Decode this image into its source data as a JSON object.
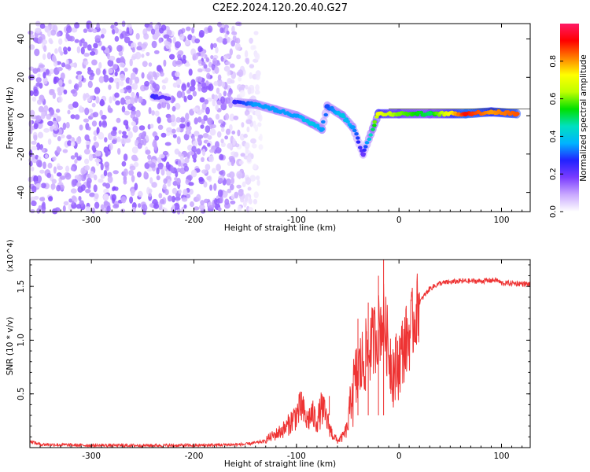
{
  "title": "C2E2.2024.120.20.40.G27",
  "chart_data": [
    {
      "type": "heatmap",
      "xlabel": "Height of straight line (km)",
      "ylabel": "Frequency (Hz)",
      "xlim": [
        -360,
        128
      ],
      "ylim": [
        -50,
        48
      ],
      "xticks": [
        -300,
        -200,
        -100,
        0,
        100
      ],
      "yticks": [
        -40,
        -20,
        0,
        20,
        40
      ],
      "colorbar": {
        "label": "Normalized spectral amplitude",
        "range": [
          0,
          1
        ],
        "ticks": [
          0.0,
          0.2,
          0.4,
          0.6,
          0.8
        ],
        "tick_labels": [
          "0.0",
          "0.2",
          "0.4",
          "0.6",
          "0.8"
        ],
        "colormap": [
          "#ffffff",
          "#c9a8ff",
          "#7a3cff",
          "#2222ff",
          "#00b4ff",
          "#00e0c0",
          "#00e000",
          "#bfff00",
          "#ffff00",
          "#ff8000",
          "#ff0000",
          "#ff1a66"
        ]
      },
      "features": {
        "noise_region_x": [
          -360,
          -130
        ],
        "signal_trace": [
          {
            "x": -240,
            "y": 10,
            "amp": 0.25
          },
          {
            "x": -225,
            "y": 9,
            "amp": 0.2
          },
          {
            "x": -160,
            "y": 7,
            "amp": 0.25
          },
          {
            "x": -140,
            "y": 6,
            "amp": 0.35
          },
          {
            "x": -120,
            "y": 3,
            "amp": 0.35
          },
          {
            "x": -100,
            "y": 0,
            "amp": 0.35
          },
          {
            "x": -85,
            "y": -4,
            "amp": 0.4
          },
          {
            "x": -75,
            "y": -7,
            "amp": 0.35
          },
          {
            "x": -70,
            "y": 5,
            "amp": 0.3
          },
          {
            "x": -55,
            "y": 0,
            "amp": 0.4
          },
          {
            "x": -45,
            "y": -6,
            "amp": 0.35
          },
          {
            "x": -35,
            "y": -20,
            "amp": 0.2
          },
          {
            "x": -20,
            "y": 1,
            "amp": 0.7
          },
          {
            "x": 0,
            "y": 1,
            "amp": 0.6
          },
          {
            "x": 30,
            "y": 1,
            "amp": 0.5
          },
          {
            "x": 65,
            "y": 1,
            "amp": 0.9
          },
          {
            "x": 90,
            "y": 2,
            "amp": 0.8
          },
          {
            "x": 115,
            "y": 1,
            "amp": 0.85
          }
        ]
      }
    },
    {
      "type": "line",
      "xlabel": "Height of straight line (km)",
      "ylabel": "SNR (10 * v/v)",
      "yscale_label": "(x10^4)",
      "xlim": [
        -360,
        128
      ],
      "ylim": [
        0,
        1.75
      ],
      "xticks": [
        -300,
        -200,
        -100,
        0,
        100
      ],
      "yticks": [
        0.5,
        1.0,
        1.5
      ],
      "ytick_labels": [
        "0.5",
        "1.0",
        "1.5"
      ],
      "series": [
        {
          "color": "#ee3333",
          "points": [
            [
              -360,
              0.06
            ],
            [
              -350,
              0.03
            ],
            [
              -300,
              0.02
            ],
            [
              -250,
              0.02
            ],
            [
              -200,
              0.02
            ],
            [
              -150,
              0.03
            ],
            [
              -130,
              0.06
            ],
            [
              -120,
              0.1
            ],
            [
              -110,
              0.15
            ],
            [
              -100,
              0.25
            ],
            [
              -95,
              0.3
            ],
            [
              -90,
              0.2
            ],
            [
              -85,
              0.25
            ],
            [
              -80,
              0.2
            ],
            [
              -75,
              0.3
            ],
            [
              -70,
              0.2
            ],
            [
              -65,
              0.1
            ],
            [
              -60,
              0.05
            ],
            [
              -55,
              0.08
            ],
            [
              -50,
              0.15
            ],
            [
              -45,
              0.5
            ],
            [
              -40,
              0.7
            ],
            [
              -35,
              0.8
            ],
            [
              -30,
              0.9
            ],
            [
              -25,
              1.0
            ],
            [
              -20,
              1.1
            ],
            [
              -15,
              1.2
            ],
            [
              -10,
              0.9
            ],
            [
              -5,
              0.7
            ],
            [
              0,
              0.8
            ],
            [
              5,
              0.95
            ],
            [
              10,
              1.05
            ],
            [
              15,
              1.2
            ],
            [
              20,
              1.35
            ],
            [
              25,
              1.42
            ],
            [
              30,
              1.48
            ],
            [
              40,
              1.53
            ],
            [
              60,
              1.55
            ],
            [
              80,
              1.55
            ],
            [
              95,
              1.56
            ],
            [
              100,
              1.53
            ],
            [
              110,
              1.53
            ],
            [
              128,
              1.52
            ]
          ],
          "spikes": [
            [
              -15,
              1.75
            ],
            [
              -20,
              1.6
            ],
            [
              -30,
              1.35
            ],
            [
              -40,
              1.2
            ],
            [
              -95,
              0.52
            ],
            [
              -68,
              0.48
            ]
          ]
        }
      ]
    }
  ]
}
